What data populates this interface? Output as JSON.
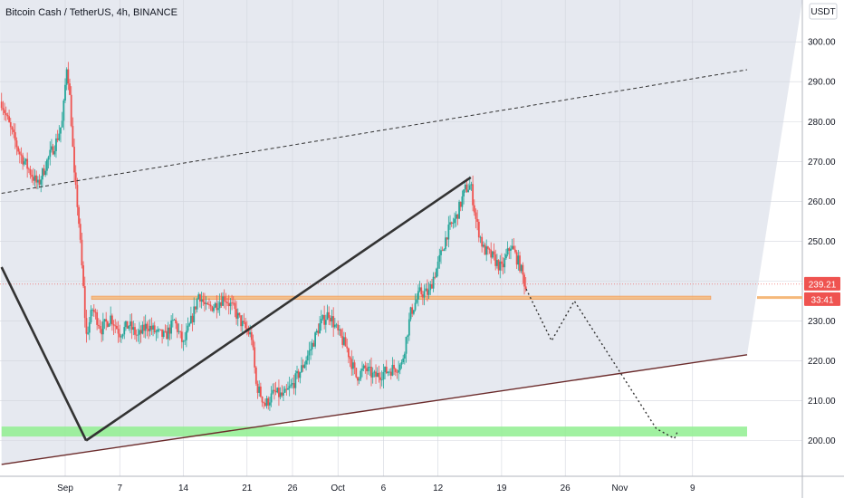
{
  "chart_data": {
    "type": "candlestick",
    "title": "Bitcoin Cash / TetherUS, 4h, BINANCE",
    "currency_button": "USDT",
    "y_ticks": [
      200,
      210,
      220,
      230,
      240,
      250,
      260,
      270,
      280,
      290,
      300
    ],
    "y_tick_labels": [
      "200.00",
      "210.00",
      "220.00",
      "230.00",
      "240.00",
      "250.00",
      "260.00",
      "270.00",
      "280.00",
      "290.00",
      "300.00"
    ],
    "ylim": [
      195,
      305
    ],
    "x_ticks": [
      {
        "label": "Sep",
        "day": 1
      },
      {
        "label": "7",
        "day": 7
      },
      {
        "label": "14",
        "day": 14
      },
      {
        "label": "21",
        "day": 21
      },
      {
        "label": "26",
        "day": 26
      },
      {
        "label": "Oct",
        "day": 31
      },
      {
        "label": "6",
        "day": 36
      },
      {
        "label": "12",
        "day": 42
      },
      {
        "label": "19",
        "day": 49
      },
      {
        "label": "26",
        "day": 56
      },
      {
        "label": "Nov",
        "day": 62
      },
      {
        "label": "9",
        "day": 70
      }
    ],
    "last_price_label": "239.21",
    "countdown_label": "33:41",
    "colors": {
      "up": "#26a69a",
      "down": "#ef5350",
      "support_zone": "#90ee90",
      "resistance_zone": "#f5b87a",
      "trendline": "#333333",
      "lower_trendline": "#6b2b2b",
      "last_price": "#ef5350"
    },
    "price_path": [
      {
        "day": -6,
        "price": 285
      },
      {
        "day": -5,
        "price": 278
      },
      {
        "day": -4,
        "price": 272
      },
      {
        "day": -3,
        "price": 268
      },
      {
        "day": -2,
        "price": 264
      },
      {
        "day": -1,
        "price": 270
      },
      {
        "day": 0,
        "price": 275
      },
      {
        "day": 0.7,
        "price": 280
      },
      {
        "day": 1.2,
        "price": 295
      },
      {
        "day": 1.6,
        "price": 283
      },
      {
        "day": 2,
        "price": 266
      },
      {
        "day": 2.4,
        "price": 258
      },
      {
        "day": 3,
        "price": 238
      },
      {
        "day": 3.3,
        "price": 226
      },
      {
        "day": 4,
        "price": 233
      },
      {
        "day": 5,
        "price": 228
      },
      {
        "day": 6,
        "price": 231
      },
      {
        "day": 7,
        "price": 227
      },
      {
        "day": 8,
        "price": 229
      },
      {
        "day": 9,
        "price": 226
      },
      {
        "day": 10,
        "price": 229
      },
      {
        "day": 11,
        "price": 227
      },
      {
        "day": 12,
        "price": 226
      },
      {
        "day": 13,
        "price": 230
      },
      {
        "day": 14,
        "price": 224
      },
      {
        "day": 15,
        "price": 231
      },
      {
        "day": 15.7,
        "price": 237
      },
      {
        "day": 16.5,
        "price": 233
      },
      {
        "day": 17.5,
        "price": 234
      },
      {
        "day": 18.5,
        "price": 236
      },
      {
        "day": 19.5,
        "price": 233
      },
      {
        "day": 20.5,
        "price": 229
      },
      {
        "day": 21.5,
        "price": 226
      },
      {
        "day": 22,
        "price": 214
      },
      {
        "day": 23,
        "price": 209
      },
      {
        "day": 24,
        "price": 212
      },
      {
        "day": 25,
        "price": 211
      },
      {
        "day": 26,
        "price": 214
      },
      {
        "day": 27,
        "price": 218
      },
      {
        "day": 28,
        "price": 223
      },
      {
        "day": 29,
        "price": 229
      },
      {
        "day": 30,
        "price": 232
      },
      {
        "day": 31,
        "price": 227
      },
      {
        "day": 32,
        "price": 223
      },
      {
        "day": 33,
        "price": 216
      },
      {
        "day": 34,
        "price": 218
      },
      {
        "day": 35,
        "price": 216
      },
      {
        "day": 36,
        "price": 217
      },
      {
        "day": 37,
        "price": 218
      },
      {
        "day": 38,
        "price": 219
      },
      {
        "day": 39,
        "price": 232
      },
      {
        "day": 40,
        "price": 237
      },
      {
        "day": 41,
        "price": 237
      },
      {
        "day": 41.5,
        "price": 241
      },
      {
        "day": 42,
        "price": 244
      },
      {
        "day": 43,
        "price": 252
      },
      {
        "day": 44,
        "price": 256
      },
      {
        "day": 45,
        "price": 263
      },
      {
        "day": 45.6,
        "price": 264
      },
      {
        "day": 46.2,
        "price": 255
      },
      {
        "day": 47,
        "price": 248
      },
      {
        "day": 48,
        "price": 246
      },
      {
        "day": 49,
        "price": 243
      },
      {
        "day": 50,
        "price": 249
      },
      {
        "day": 51,
        "price": 244
      },
      {
        "day": 51.7,
        "price": 238
      }
    ],
    "drawings": [
      {
        "kind": "zone",
        "name": "support-zone",
        "y": [
          201,
          203.5
        ],
        "day": [
          -6,
          76
        ]
      },
      {
        "kind": "zone",
        "name": "resistance-zone",
        "y": [
          235.4,
          236.2
        ],
        "day": [
          3.9,
          72
        ]
      },
      {
        "kind": "line",
        "name": "left-descending-line",
        "points": [
          [
            -6,
            243.5
          ],
          [
            3.3,
            200
          ]
        ],
        "width": 2.6,
        "color": "#333333"
      },
      {
        "kind": "line",
        "name": "upper-rising-line",
        "points": [
          [
            3.3,
            200
          ],
          [
            45.6,
            266
          ]
        ],
        "width": 2.6,
        "color": "#333333"
      },
      {
        "kind": "line",
        "name": "upper-dashed-channel",
        "points": [
          [
            -6,
            262
          ],
          [
            76,
            293
          ]
        ],
        "width": 1,
        "color": "#333333",
        "dash": "4,3"
      },
      {
        "kind": "line",
        "name": "lower-support-trendline",
        "points": [
          [
            -6,
            194
          ],
          [
            76,
            221.5
          ]
        ],
        "width": 1.4,
        "color": "#6b2b2b"
      },
      {
        "kind": "line",
        "name": "projection-path",
        "points": [
          [
            51.7,
            238
          ],
          [
            54.5,
            225
          ],
          [
            57,
            235
          ],
          [
            66,
            203
          ],
          [
            68,
            200.5
          ],
          [
            68.3,
            202
          ]
        ],
        "width": 1.4,
        "color": "#333333",
        "dash": "2,3"
      }
    ]
  }
}
